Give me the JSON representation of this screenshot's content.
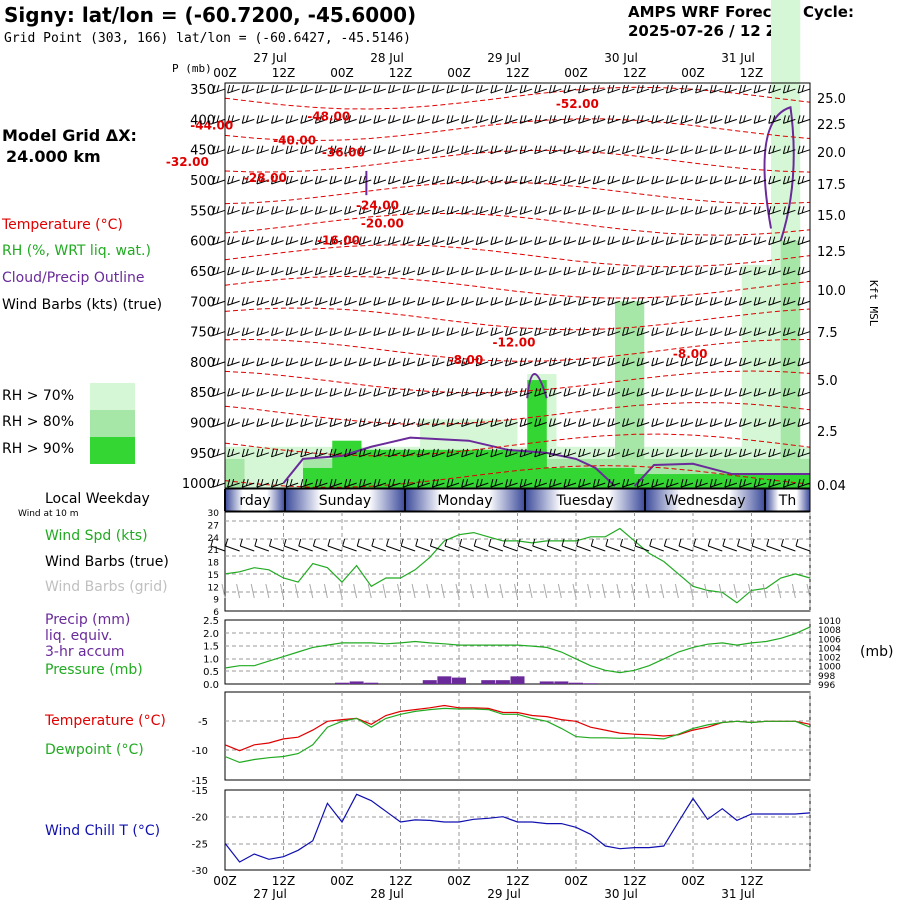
{
  "header": {
    "title": "Signy:  lat/lon = (-60.7200, -45.6000)",
    "subtitle": "Grid Point (303, 166) lat/lon = (-60.6427, -45.5146)",
    "cycle_line1": "AMPS WRF Forecast Cycle:",
    "cycle_line2": "2025-07-26 / 12  Z",
    "p_label": "P (mb)",
    "kft_label": "Kft MSL"
  },
  "side": {
    "grid_label": "Model Grid ΔX:",
    "grid_value": "24.000 km",
    "legend_temperature": "Temperature (°C)",
    "legend_rh": "RH (%, WRT liq. wat.)",
    "legend_cloud": "Cloud/Precip Outline",
    "legend_wind": "Wind Barbs (kts) (true)",
    "rh_levels": [
      "RH > 70%",
      "RH > 80%",
      "RH > 90%"
    ],
    "local_weekday": "Local Weekday",
    "wind_at": "Wind at 10 m",
    "wind_spd": "Wind Spd (kts)",
    "wind_barbs_true": "Wind Barbs (true)",
    "wind_barbs_grid": "Wind Barbs (grid)",
    "precip1": "Precip (mm)",
    "precip2": "liq. equiv.",
    "precip3": "3-hr accum",
    "pressure": "Pressure (mb)",
    "temperature": "Temperature (°C)",
    "dewpoint": "Dewpoint (°C)",
    "wind_chill": "Wind Chill T (°C)",
    "mb_unit": "(mb)"
  },
  "colors": {
    "temperature": "#e00000",
    "rh": "#22aa22",
    "cloud": "#6a2a9a",
    "wind_chill": "#1010b0",
    "rh70": "#d6f7d6",
    "rh80": "#a6e6a6",
    "rh90": "#33d633"
  },
  "chart_data": [
    {
      "type": "heatmap",
      "title": "Cross section",
      "time_ticks": [
        "00Z",
        "12Z",
        "00Z",
        "12Z",
        "00Z",
        "12Z",
        "00Z",
        "12Z",
        "00Z",
        "12Z"
      ],
      "date_labels": [
        "27 Jul",
        "28 Jul",
        "29 Jul",
        "30 Jul",
        "31 Jul"
      ],
      "pressure_levels": [
        350,
        400,
        450,
        500,
        550,
        600,
        650,
        700,
        750,
        800,
        850,
        900,
        950,
        1000
      ],
      "height_kft": [
        "25.0",
        "22.5",
        "20.0",
        "17.5",
        "15.0",
        "12.5",
        "10.0",
        "7.5",
        "5.0",
        "2.5",
        "0.04"
      ],
      "temperature_labels": [
        "-48.00",
        "-44.00",
        "-40.00",
        "-36.00",
        "-32.00",
        "-28.00",
        "-24.00",
        "-20.00",
        "-16.00",
        "-12.00",
        "-8.00",
        "-8.00",
        "-52.00"
      ]
    },
    {
      "type": "bar",
      "title": "Local Weekday",
      "categories": [
        "rday",
        "Sunday",
        "Monday",
        "Tuesday",
        "Wednesday",
        "Th"
      ]
    },
    {
      "type": "line",
      "title": "Wind Spd (kts)",
      "ylim": [
        6,
        30
      ],
      "yticks": [
        "30",
        "27",
        "24",
        "21",
        "18",
        "15",
        "12",
        "9",
        "6"
      ],
      "x_hours": [
        0,
        3,
        6,
        9,
        12,
        15,
        18,
        21,
        24,
        27,
        30,
        33,
        36,
        39,
        42,
        45,
        48,
        51,
        54,
        57,
        60,
        63,
        66,
        69,
        72,
        75,
        78,
        81,
        84,
        87,
        90,
        93,
        96,
        99,
        102,
        105,
        108,
        111,
        114,
        117,
        120
      ],
      "values": [
        15,
        15.5,
        16.5,
        16,
        14,
        13,
        17.5,
        16.5,
        13,
        17,
        12,
        14,
        14,
        16,
        19,
        23,
        24.5,
        25,
        24,
        23,
        23,
        22.5,
        23,
        23,
        23,
        24,
        24,
        26,
        23,
        20,
        18,
        15,
        12,
        11,
        10.5,
        8,
        11,
        11.5,
        14,
        15,
        14
      ]
    },
    {
      "type": "line",
      "title": "Precip (mm) / Pressure (mb)",
      "precip_ylim": [
        0,
        2.5
      ],
      "precip_yticks": [
        "2.5",
        "2.0",
        "1.5",
        "1.0",
        "0.5",
        "0.0"
      ],
      "pressure_ylim": [
        996,
        1010
      ],
      "pressure_yticks": [
        "1010",
        "1008",
        "1006",
        "1004",
        "1002",
        "1000",
        "998",
        "996"
      ],
      "x_hours": [
        0,
        3,
        6,
        9,
        12,
        15,
        18,
        21,
        24,
        27,
        30,
        33,
        36,
        39,
        42,
        45,
        48,
        51,
        54,
        57,
        60,
        63,
        66,
        69,
        72,
        75,
        78,
        81,
        84,
        87,
        90,
        93,
        96,
        99,
        102,
        105,
        108,
        111,
        114,
        117,
        120
      ],
      "pressure": [
        999.5,
        1000,
        1000,
        1001,
        1002,
        1003,
        1004,
        1004.5,
        1005,
        1005,
        1005,
        1004.8,
        1005,
        1005.3,
        1005,
        1004.8,
        1004.5,
        1004.5,
        1004.5,
        1004.5,
        1004.5,
        1004.3,
        1004,
        1003,
        1001.5,
        1000,
        999,
        998.5,
        999,
        1000,
        1001.5,
        1003,
        1004,
        1004.7,
        1005,
        1004.5,
        1005,
        1005.3,
        1006,
        1007,
        1008.5
      ],
      "precip_x": [
        24,
        27,
        30,
        42,
        45,
        48,
        54,
        57,
        60,
        66,
        69,
        72,
        75
      ],
      "precip": [
        0.05,
        0.1,
        0.05,
        0.15,
        0.3,
        0.25,
        0.15,
        0.15,
        0.3,
        0.1,
        0.1,
        0.05,
        0.03
      ]
    },
    {
      "type": "line",
      "title": "Temperature / Dewpoint (°C)",
      "ylim": [
        -15,
        0
      ],
      "yticks": [
        "-5",
        "-10",
        "-15"
      ],
      "x_hours": [
        0,
        3,
        6,
        9,
        12,
        15,
        18,
        21,
        24,
        27,
        30,
        33,
        36,
        39,
        42,
        45,
        48,
        51,
        54,
        57,
        60,
        63,
        66,
        69,
        72,
        75,
        78,
        81,
        84,
        87,
        90,
        93,
        96,
        99,
        102,
        105,
        108,
        111,
        114,
        117,
        120
      ],
      "series": [
        {
          "name": "Temperature",
          "values": [
            -9,
            -10,
            -9,
            -8.7,
            -8,
            -7.7,
            -6.5,
            -5,
            -4.7,
            -4.5,
            -5.5,
            -4,
            -3.3,
            -3,
            -2.7,
            -2.3,
            -2.7,
            -2.7,
            -2.8,
            -3.5,
            -3.5,
            -4,
            -4.2,
            -4.7,
            -5,
            -6,
            -6.5,
            -7,
            -7.2,
            -7.3,
            -7.5,
            -7.3,
            -6.5,
            -6,
            -5.2,
            -5,
            -5.2,
            -5,
            -5,
            -5,
            -5.5
          ]
        },
        {
          "name": "Dewpoint",
          "values": [
            -11,
            -12,
            -11.5,
            -11.2,
            -11,
            -10.5,
            -9,
            -6,
            -5,
            -4.5,
            -6,
            -4.5,
            -3.8,
            -3.3,
            -3,
            -2.8,
            -2.9,
            -2.9,
            -3,
            -3.8,
            -3.8,
            -4.5,
            -5,
            -6.2,
            -7.6,
            -7.8,
            -7.8,
            -7.9,
            -7.8,
            -7.9,
            -8,
            -7.2,
            -6.2,
            -5.6,
            -5.2,
            -5,
            -5.2,
            -5,
            -5,
            -5,
            -6
          ]
        }
      ]
    },
    {
      "type": "line",
      "title": "Wind Chill T (°C)",
      "ylim": [
        -30,
        -15
      ],
      "yticks": [
        "-15",
        "-20",
        "-25",
        "-30"
      ],
      "x_hours": [
        0,
        3,
        6,
        9,
        12,
        15,
        18,
        21,
        24,
        27,
        30,
        33,
        36,
        39,
        42,
        45,
        48,
        51,
        54,
        57,
        60,
        63,
        66,
        69,
        72,
        75,
        78,
        81,
        84,
        87,
        90,
        93,
        96,
        99,
        102,
        105,
        108,
        111,
        114,
        117,
        120
      ],
      "values": [
        -25,
        -28.5,
        -27,
        -28,
        -27.5,
        -26.3,
        -24.5,
        -17.5,
        -21,
        -15.8,
        -17,
        -19,
        -21,
        -20.6,
        -20.7,
        -21,
        -21,
        -20.5,
        -20.3,
        -20,
        -21,
        -21,
        -21.3,
        -21.3,
        -22,
        -23.3,
        -25.5,
        -26,
        -25.8,
        -25.8,
        -25.5,
        -21,
        -16.6,
        -20.5,
        -18.5,
        -20.7,
        -19.5,
        -19.5,
        -19.5,
        -19.5,
        -19.3
      ]
    }
  ]
}
